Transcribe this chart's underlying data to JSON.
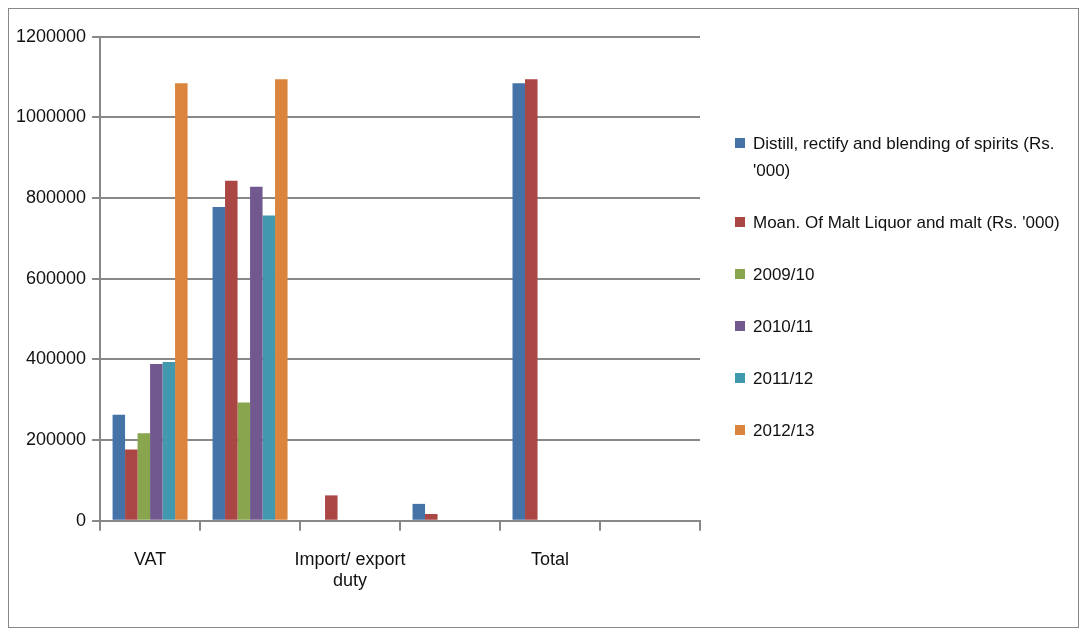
{
  "chart_data": {
    "type": "bar",
    "categories": [
      "VAT",
      null,
      "Import/ export duty",
      null,
      "Total",
      null
    ],
    "series": [
      {
        "name": "Distill, rectify and blending of spirits (Rs. '000)",
        "color": "#4572a7",
        "values": [
          263000,
          778000,
          null,
          42000,
          1085000,
          null
        ]
      },
      {
        "name": "Moan. Of Malt Liquor and malt (Rs. '000)",
        "color": "#aa4643",
        "values": [
          177000,
          843000,
          63000,
          17000,
          1095000,
          null
        ]
      },
      {
        "name": "2009/10",
        "color": "#89a54e",
        "values": [
          217000,
          293000,
          null,
          null,
          0,
          0
        ]
      },
      {
        "name": "2010/11",
        "color": "#71588f",
        "values": [
          389000,
          828000,
          0,
          0,
          0,
          0
        ]
      },
      {
        "name": "2011/12",
        "color": "#4198af",
        "values": [
          394000,
          757000,
          0,
          0,
          0,
          0
        ]
      },
      {
        "name": "2012/13",
        "color": "#db843d",
        "values": [
          1085000,
          1095000,
          0,
          0,
          0,
          0
        ]
      }
    ],
    "ylim": [
      0,
      1200000
    ],
    "yticks": [
      0,
      200000,
      400000,
      600000,
      800000,
      1000000,
      1200000
    ],
    "grid": "y",
    "legend": "right"
  }
}
